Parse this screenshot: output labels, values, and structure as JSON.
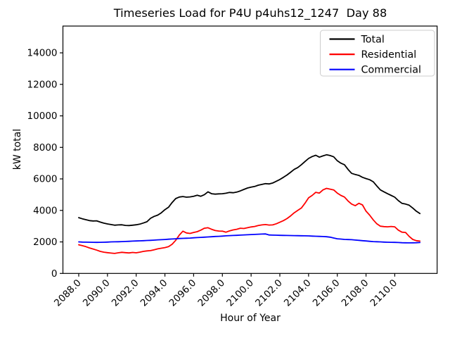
{
  "figure": {
    "title": "Timeseries Load for P4U p4uhs12_1247  Day 88",
    "xlabel": "Hour of Year",
    "ylabel": "kW total"
  },
  "legend": {
    "position": "upper-right",
    "entries": [
      {
        "label": "Total",
        "color": "#000000"
      },
      {
        "label": "Residential",
        "color": "#ff0000"
      },
      {
        "label": "Commercial",
        "color": "#0000ff"
      }
    ]
  },
  "chart_data": {
    "type": "line",
    "title": "Timeseries Load for P4U p4uhs12_1247  Day 88",
    "xlabel": "Hour of Year",
    "ylabel": "kW total",
    "xlim": [
      2086.9,
      2112.95
    ],
    "ylim": [
      0,
      15700
    ],
    "grid": false,
    "legend_position": "upper-right",
    "xticks": {
      "values": [
        2088,
        2090,
        2092,
        2094,
        2096,
        2098,
        2100,
        2102,
        2104,
        2106,
        2108,
        2110
      ],
      "labels": [
        "2088.0",
        "2090.0",
        "2092.0",
        "2094.0",
        "2096.0",
        "2098.0",
        "2100.0",
        "2102.0",
        "2104.0",
        "2106.0",
        "2108.0",
        "2110.0"
      ],
      "rotation": 45
    },
    "yticks": {
      "values": [
        0,
        2000,
        4000,
        6000,
        8000,
        10000,
        12000,
        14000
      ],
      "labels": [
        "0",
        "2000",
        "4000",
        "6000",
        "8000",
        "10000",
        "12000",
        "14000"
      ]
    },
    "x": [
      2088.0,
      2088.25,
      2088.5,
      2088.75,
      2089.0,
      2089.25,
      2089.5,
      2089.75,
      2090.0,
      2090.25,
      2090.5,
      2090.75,
      2091.0,
      2091.25,
      2091.5,
      2091.75,
      2092.0,
      2092.25,
      2092.5,
      2092.75,
      2093.0,
      2093.25,
      2093.5,
      2093.75,
      2094.0,
      2094.25,
      2094.5,
      2094.75,
      2095.0,
      2095.25,
      2095.5,
      2095.75,
      2096.0,
      2096.25,
      2096.5,
      2096.75,
      2097.0,
      2097.25,
      2097.5,
      2097.75,
      2098.0,
      2098.25,
      2098.5,
      2098.75,
      2099.0,
      2099.25,
      2099.5,
      2099.75,
      2100.0,
      2100.25,
      2100.5,
      2100.75,
      2101.0,
      2101.25,
      2101.5,
      2101.75,
      2102.0,
      2102.25,
      2102.5,
      2102.75,
      2103.0,
      2103.25,
      2103.5,
      2103.75,
      2104.0,
      2104.25,
      2104.5,
      2104.75,
      2105.0,
      2105.25,
      2105.5,
      2105.75,
      2106.0,
      2106.25,
      2106.5,
      2106.75,
      2107.0,
      2107.25,
      2107.5,
      2107.75,
      2108.0,
      2108.25,
      2108.5,
      2108.75,
      2109.0,
      2109.25,
      2109.5,
      2109.75,
      2110.0,
      2110.25,
      2110.5,
      2110.75,
      2111.0,
      2111.25,
      2111.5,
      2111.75
    ],
    "series": [
      {
        "name": "Total",
        "color": "#000000",
        "values": [
          3540,
          3470,
          3410,
          3350,
          3330,
          3340,
          3260,
          3190,
          3140,
          3100,
          3060,
          3080,
          3090,
          3050,
          3040,
          3060,
          3090,
          3130,
          3200,
          3280,
          3500,
          3620,
          3700,
          3850,
          4050,
          4200,
          4500,
          4750,
          4850,
          4880,
          4840,
          4860,
          4900,
          4960,
          4900,
          5000,
          5180,
          5060,
          5030,
          5050,
          5060,
          5090,
          5140,
          5120,
          5160,
          5240,
          5330,
          5420,
          5480,
          5520,
          5600,
          5650,
          5700,
          5680,
          5740,
          5850,
          5960,
          6100,
          6250,
          6420,
          6600,
          6720,
          6900,
          7100,
          7300,
          7420,
          7500,
          7380,
          7460,
          7530,
          7480,
          7400,
          7150,
          7000,
          6900,
          6600,
          6350,
          6280,
          6220,
          6100,
          6020,
          5950,
          5820,
          5550,
          5300,
          5180,
          5060,
          4950,
          4840,
          4620,
          4450,
          4400,
          4330,
          4150,
          3950,
          3800
        ]
      },
      {
        "name": "Residential",
        "color": "#ff0000",
        "values": [
          1820,
          1760,
          1700,
          1620,
          1550,
          1480,
          1400,
          1350,
          1320,
          1290,
          1270,
          1310,
          1340,
          1320,
          1300,
          1330,
          1310,
          1350,
          1400,
          1430,
          1450,
          1500,
          1560,
          1600,
          1640,
          1700,
          1850,
          2100,
          2430,
          2680,
          2570,
          2540,
          2600,
          2650,
          2750,
          2870,
          2900,
          2800,
          2720,
          2690,
          2680,
          2620,
          2700,
          2760,
          2800,
          2870,
          2850,
          2900,
          2950,
          2980,
          3040,
          3080,
          3100,
          3070,
          3080,
          3150,
          3250,
          3350,
          3480,
          3650,
          3850,
          4000,
          4150,
          4450,
          4800,
          4950,
          5150,
          5100,
          5300,
          5400,
          5350,
          5300,
          5100,
          4950,
          4850,
          4600,
          4400,
          4300,
          4450,
          4350,
          3950,
          3700,
          3400,
          3150,
          3000,
          2970,
          2960,
          2980,
          2960,
          2750,
          2620,
          2600,
          2350,
          2160,
          2080,
          2050
        ]
      },
      {
        "name": "Commercial",
        "color": "#0000ff",
        "values": [
          2000,
          1990,
          1985,
          1980,
          1975,
          1970,
          1975,
          1980,
          1990,
          2000,
          2005,
          2010,
          2020,
          2030,
          2040,
          2050,
          2060,
          2070,
          2080,
          2090,
          2100,
          2115,
          2130,
          2140,
          2155,
          2170,
          2185,
          2200,
          2215,
          2225,
          2235,
          2245,
          2260,
          2275,
          2290,
          2300,
          2315,
          2330,
          2345,
          2355,
          2370,
          2385,
          2400,
          2410,
          2420,
          2430,
          2445,
          2455,
          2465,
          2475,
          2490,
          2500,
          2505,
          2440,
          2430,
          2425,
          2420,
          2415,
          2410,
          2405,
          2400,
          2395,
          2390,
          2385,
          2380,
          2370,
          2360,
          2350,
          2340,
          2330,
          2300,
          2250,
          2200,
          2180,
          2160,
          2150,
          2140,
          2120,
          2100,
          2080,
          2060,
          2040,
          2020,
          2010,
          2000,
          1990,
          1980,
          1975,
          1970,
          1960,
          1950,
          1945,
          1940,
          1945,
          1950,
          1960
        ]
      }
    ]
  }
}
